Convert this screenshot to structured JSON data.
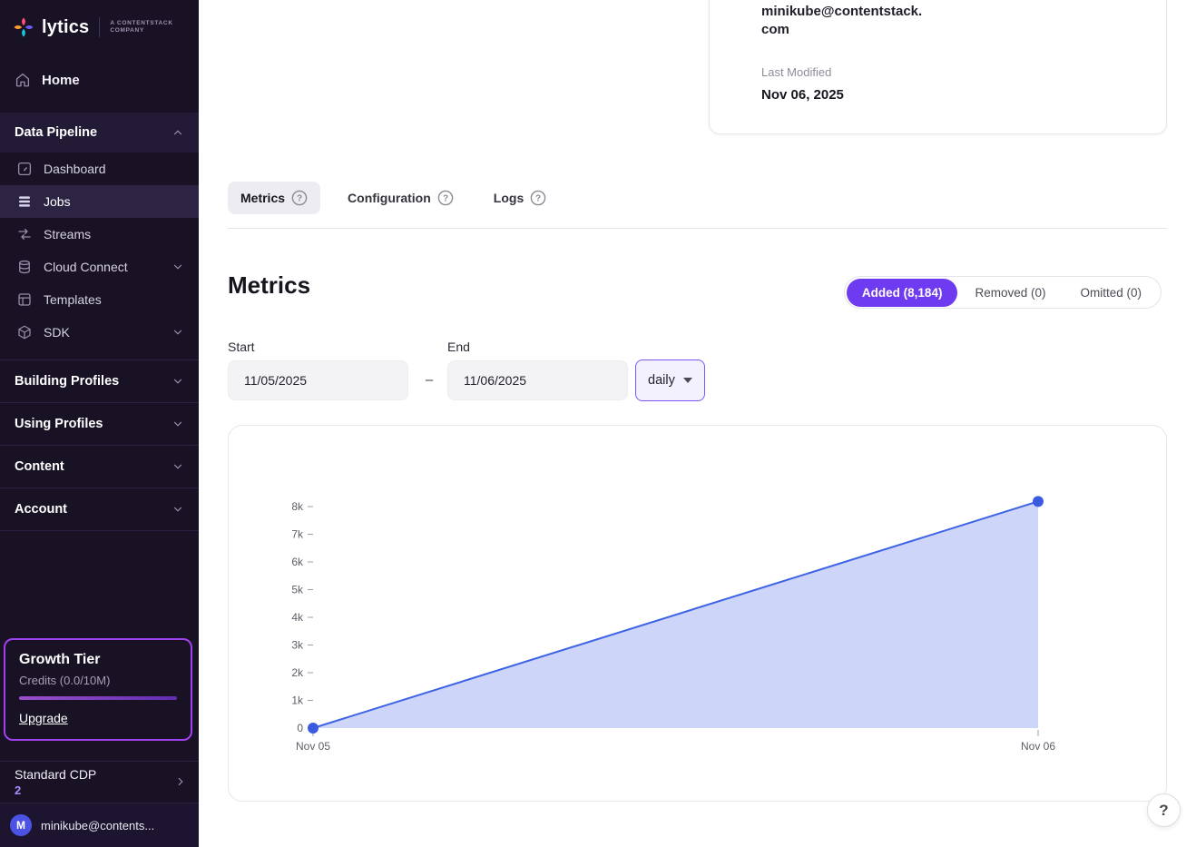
{
  "sidebar": {
    "brand": {
      "name": "lytics",
      "tagline_line1": "A CONTENTSTACK",
      "tagline_line2": "COMPANY"
    },
    "home_label": "Home",
    "pipeline": {
      "label": "Data Pipeline",
      "items": [
        {
          "label": "Dashboard"
        },
        {
          "label": "Jobs"
        },
        {
          "label": "Streams"
        },
        {
          "label": "Cloud Connect"
        },
        {
          "label": "Templates"
        },
        {
          "label": "SDK"
        }
      ]
    },
    "sections": [
      {
        "label": "Building Profiles"
      },
      {
        "label": "Using Profiles"
      },
      {
        "label": "Content"
      },
      {
        "label": "Account"
      }
    ],
    "tier": {
      "title": "Growth Tier",
      "credits": "Credits (0.0/10M)",
      "upgrade_label": "Upgrade"
    },
    "plan": {
      "name": "Standard CDP",
      "count": "2"
    },
    "user": {
      "initial": "M",
      "email": "minikube@contents..."
    }
  },
  "detail_card": {
    "email_line1": "minikube@contentstack.",
    "email_line2": "com",
    "last_modified_label": "Last Modified",
    "last_modified_value": "Nov 06, 2025"
  },
  "tabs": [
    {
      "label": "Metrics"
    },
    {
      "label": "Configuration"
    },
    {
      "label": "Logs"
    }
  ],
  "metrics": {
    "title": "Metrics",
    "segments": [
      {
        "label": "Added (8,184)"
      },
      {
        "label": "Removed (0)"
      },
      {
        "label": "Omitted (0)"
      }
    ],
    "start_label": "Start",
    "start_value": "11/05/2025",
    "separator": "–",
    "end_label": "End",
    "end_value": "11/06/2025",
    "interval_value": "daily"
  },
  "help_label": "?",
  "chart_data": {
    "type": "area",
    "title": "",
    "x": [
      "Nov 05",
      "Nov 06"
    ],
    "series": [
      {
        "name": "Added",
        "values": [
          0,
          8184
        ]
      }
    ],
    "y_ticks": [
      0,
      1000,
      2000,
      3000,
      4000,
      5000,
      6000,
      7000,
      8000
    ],
    "y_tick_labels": [
      "0",
      "1k",
      "2k",
      "3k",
      "4k",
      "5k",
      "6k",
      "7k",
      "8k"
    ],
    "ylim": [
      0,
      8800
    ],
    "grid": false,
    "legend": "none",
    "line_color": "#3f63e4",
    "fill_color": "#cdd6f8",
    "dot_color": "#3a5be0",
    "axis_color": "#9aa0a8",
    "label_color": "#5c5e66"
  }
}
